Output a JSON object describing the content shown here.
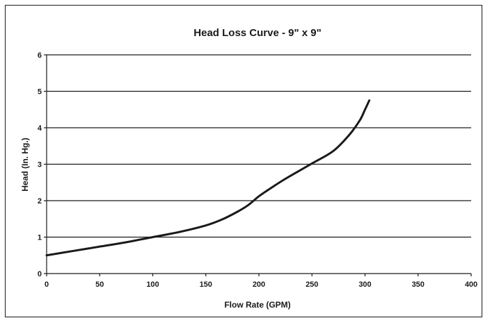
{
  "chart_data": {
    "type": "line",
    "title": "Head Loss Curve - 9\" x 9\"",
    "xlabel": "Flow Rate (GPM)",
    "ylabel": "Head (In. Hg.)",
    "xlim": [
      0,
      400
    ],
    "ylim": [
      0,
      6
    ],
    "x_ticks": [
      "0",
      "50",
      "100",
      "150",
      "200",
      "250",
      "300",
      "350",
      "400"
    ],
    "y_ticks": [
      "0",
      "1",
      "2",
      "3",
      "4",
      "5",
      "6"
    ],
    "grid": "horizontal",
    "legend": "none",
    "series": [
      {
        "color": "#1a1a1a",
        "x": [
          0,
          25,
          50,
          75,
          100,
          125,
          150,
          165,
          180,
          190,
          200,
          210,
          225,
          250,
          270,
          285,
          295,
          300,
          304
        ],
        "y": [
          0.5,
          0.62,
          0.74,
          0.86,
          1.0,
          1.14,
          1.32,
          1.48,
          1.7,
          1.88,
          2.12,
          2.32,
          2.6,
          3.02,
          3.36,
          3.8,
          4.2,
          4.5,
          4.75
        ]
      }
    ]
  }
}
